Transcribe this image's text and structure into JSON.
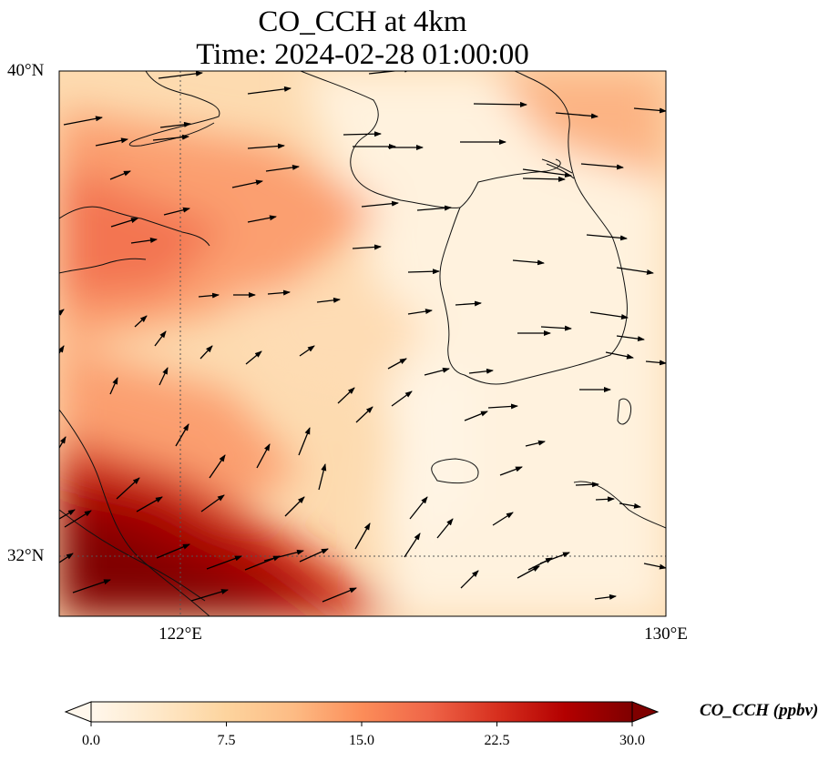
{
  "title": {
    "line1": "CO_CCH at 4km",
    "line2": "Time: 2024-02-28 01:00:00"
  },
  "map": {
    "variable": "CO_CCH",
    "level": "4km",
    "lat_range": [
      31,
      40
    ],
    "lon_range": [
      120,
      130
    ],
    "lat_ticks": [
      "40°N",
      "32°N"
    ],
    "lon_ticks": [
      "122°E",
      "130°E"
    ],
    "gridlines": "dotted at 122°E and 32°N",
    "features": [
      "coastlines",
      "wind-vectors",
      "concentration-field"
    ]
  },
  "colorbar": {
    "colormap": "OrRd",
    "min": 0.0,
    "max": 30.0,
    "ticks": [
      "0.0",
      "7.5",
      "15.0",
      "22.5",
      "30.0"
    ],
    "label": "CO_CCH (ppbv)",
    "extend": "both",
    "colors": [
      "#fff7ec",
      "#fee8c8",
      "#fdd49e",
      "#fdbb84",
      "#fc8d59",
      "#ef6548",
      "#d7301f",
      "#b30000",
      "#7f0000"
    ]
  }
}
